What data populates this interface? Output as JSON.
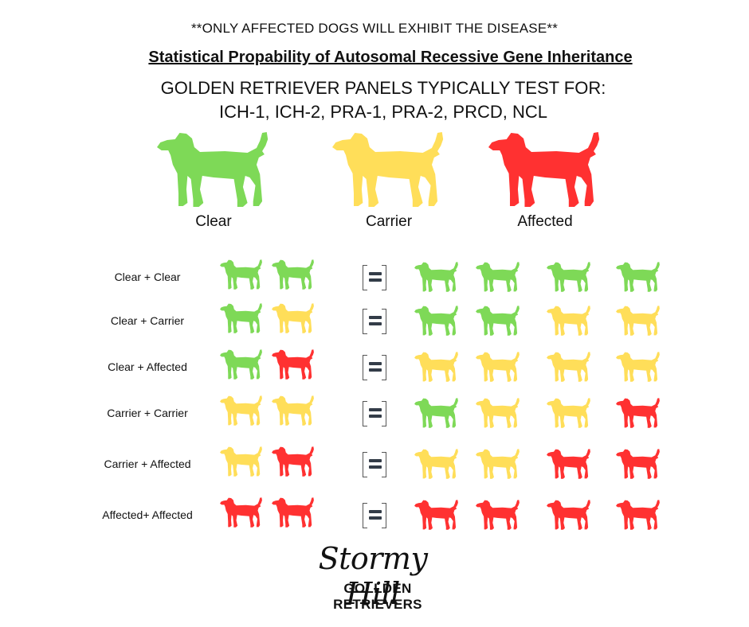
{
  "header": {
    "note": "**ONLY AFFECTED DOGS WILL EXHIBIT THE DISEASE**",
    "title": "Statistical Propability of Autosomal Recessive Gene Inheritance",
    "panels_line1": "GOLDEN RETRIEVER PANELS TYPICALLY TEST FOR:",
    "panels_line2": "ICH-1, ICH-2, PRA-1, PRA-2, PRCD, NCL"
  },
  "legend": [
    {
      "label": "Clear",
      "color": "#7ed957"
    },
    {
      "label": "Carrier",
      "color": "#ffde59"
    },
    {
      "label": "Affected",
      "color": "#ff3131"
    }
  ],
  "colors": {
    "clear": "#7ed957",
    "carrier": "#ffde59",
    "affected": "#ff3131",
    "equals": "#333c48"
  },
  "crosses": [
    {
      "label": "Clear + Clear",
      "parents": [
        "clear",
        "clear"
      ],
      "offspring": [
        "clear",
        "clear",
        "clear",
        "clear"
      ]
    },
    {
      "label": "Clear + Carrier",
      "parents": [
        "clear",
        "carrier"
      ],
      "offspring": [
        "clear",
        "clear",
        "carrier",
        "carrier"
      ]
    },
    {
      "label": "Clear + Affected",
      "parents": [
        "clear",
        "affected"
      ],
      "offspring": [
        "carrier",
        "carrier",
        "carrier",
        "carrier"
      ]
    },
    {
      "label": "Carrier + Carrier",
      "parents": [
        "carrier",
        "carrier"
      ],
      "offspring": [
        "clear",
        "carrier",
        "carrier",
        "affected"
      ]
    },
    {
      "label": "Carrier + Affected",
      "parents": [
        "carrier",
        "affected"
      ],
      "offspring": [
        "carrier",
        "carrier",
        "affected",
        "affected"
      ]
    },
    {
      "label": "Affected+ Affected",
      "parents": [
        "affected",
        "affected"
      ],
      "offspring": [
        "affected",
        "affected",
        "affected",
        "affected"
      ]
    }
  ],
  "icons": {
    "dog": "golden-retriever-silhouette-icon",
    "equals": "equals-icon"
  },
  "brand": {
    "line1": "Stormy Hill",
    "line2": "GOLLDEN RETRIEVERS"
  }
}
